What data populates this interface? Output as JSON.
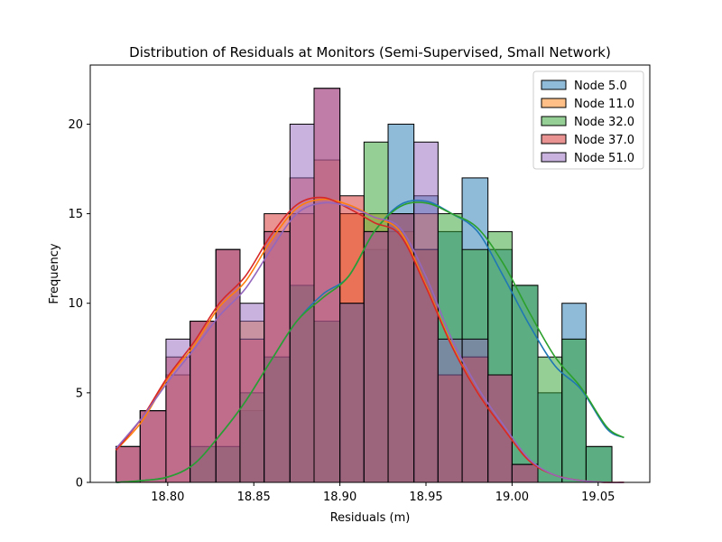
{
  "chart_data": {
    "type": "histogram",
    "title": "Distribution of Residuals at Monitors (Semi-Supervised, Small Network)",
    "xlabel": "Residuals (m)",
    "ylabel": "Frequency",
    "xlim": [
      18.755,
      19.08
    ],
    "ylim": [
      0,
      23.3
    ],
    "x_ticks": [
      18.8,
      18.85,
      18.9,
      18.95,
      19.0,
      19.05
    ],
    "x_tick_labels": [
      "18.80",
      "18.85",
      "18.90",
      "18.95",
      "19.00",
      "19.05"
    ],
    "y_ticks": [
      0,
      5,
      10,
      15,
      20
    ],
    "y_tick_labels": [
      "0",
      "5",
      "10",
      "15",
      "20"
    ],
    "legend_position": "upper-right",
    "grid": false,
    "bin_edges": [
      18.77,
      18.784,
      18.799,
      18.813,
      18.828,
      18.842,
      18.856,
      18.871,
      18.885,
      18.9,
      18.914,
      18.928,
      18.943,
      18.957,
      18.971,
      18.986,
      19.0,
      19.015,
      19.029,
      19.043,
      19.058,
      19.072
    ],
    "kde_x": [
      18.77,
      18.785,
      18.8,
      18.815,
      18.83,
      18.845,
      18.86,
      18.875,
      18.89,
      18.905,
      18.92,
      18.935,
      18.95,
      18.965,
      18.98,
      18.995,
      19.01,
      19.025,
      19.04,
      19.055,
      19.065
    ],
    "series": [
      {
        "name": "Node 5.0",
        "color": "#1f77b4",
        "counts": [
          0,
          0,
          0,
          2,
          2,
          4,
          7,
          11,
          9,
          10,
          13,
          20,
          16,
          14,
          17,
          13,
          11,
          5,
          10,
          2,
          0
        ],
        "kde": [
          0.0,
          0.1,
          0.3,
          1.0,
          2.6,
          4.5,
          6.8,
          9.0,
          10.5,
          11.5,
          14.0,
          15.5,
          15.7,
          15.0,
          14.0,
          11.5,
          8.8,
          6.5,
          5.2,
          3.0,
          2.5
        ]
      },
      {
        "name": "Node 11.0",
        "color": "#ff7f0e",
        "counts": [
          2,
          4,
          6,
          9,
          13,
          9,
          14,
          15,
          18,
          15,
          15,
          14,
          15,
          6,
          7,
          6,
          1,
          0,
          0,
          0,
          0
        ],
        "kde": [
          1.8,
          3.4,
          5.8,
          7.6,
          9.8,
          11.2,
          13.5,
          15.3,
          15.8,
          15.5,
          14.8,
          14.0,
          11.0,
          7.7,
          5.0,
          3.0,
          1.2,
          0.4,
          0.1,
          0.0,
          0.0
        ]
      },
      {
        "name": "Node 32.0",
        "color": "#2ca02c",
        "counts": [
          0,
          0,
          0,
          2,
          2,
          5,
          7,
          11,
          9,
          10,
          19,
          15,
          13,
          15,
          13,
          14,
          11,
          7,
          8,
          2,
          0
        ],
        "kde": [
          0.0,
          0.1,
          0.3,
          1.0,
          2.6,
          4.5,
          6.8,
          9.0,
          10.3,
          11.5,
          14.0,
          15.4,
          15.6,
          15.0,
          14.2,
          12.2,
          9.5,
          7.0,
          5.3,
          3.1,
          2.5
        ]
      },
      {
        "name": "Node 37.0",
        "color": "#d62728",
        "counts": [
          2,
          4,
          7,
          9,
          13,
          8,
          15,
          17,
          22,
          16,
          14,
          15,
          13,
          6,
          7,
          6,
          1,
          0,
          0,
          0,
          0
        ],
        "kde": [
          1.8,
          3.6,
          5.9,
          7.8,
          10.0,
          11.5,
          13.8,
          15.5,
          15.9,
          15.3,
          14.5,
          13.8,
          10.9,
          7.6,
          5.0,
          3.0,
          1.2,
          0.4,
          0.1,
          0.0,
          0.0
        ]
      },
      {
        "name": "Node 51.0",
        "color": "#9467bd",
        "counts": [
          2,
          4,
          8,
          9,
          13,
          10,
          14,
          20,
          22,
          10,
          14,
          15,
          19,
          8,
          8,
          6,
          1,
          0,
          0,
          0,
          0
        ],
        "kde": [
          1.9,
          3.6,
          5.6,
          7.4,
          9.3,
          10.8,
          13.0,
          15.0,
          15.6,
          15.4,
          14.8,
          14.2,
          11.5,
          8.0,
          5.3,
          3.2,
          1.3,
          0.4,
          0.1,
          0.0,
          0.0
        ]
      }
    ]
  }
}
